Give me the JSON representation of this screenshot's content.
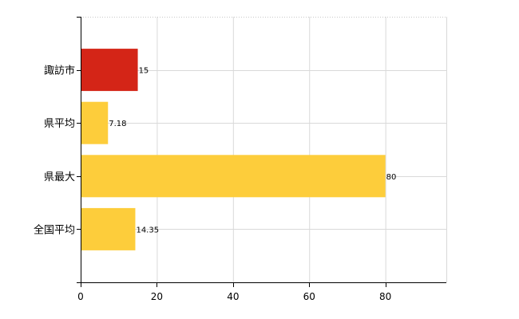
{
  "chart_data": {
    "type": "bar",
    "orientation": "horizontal",
    "categories": [
      "諏訪市",
      "県平均",
      "県最大",
      "全国平均"
    ],
    "values": [
      15,
      7.18,
      80,
      14.35
    ],
    "value_labels": [
      "15",
      "7.18",
      "80",
      "14.35"
    ],
    "colors": [
      "#d42517",
      "#fdcd3b",
      "#fdcd3b",
      "#fdcd3b"
    ],
    "xlim": [
      0,
      96
    ],
    "xticks": [
      0,
      20,
      40,
      60,
      80
    ],
    "grid": true,
    "title": "",
    "xlabel": "",
    "ylabel": ""
  }
}
